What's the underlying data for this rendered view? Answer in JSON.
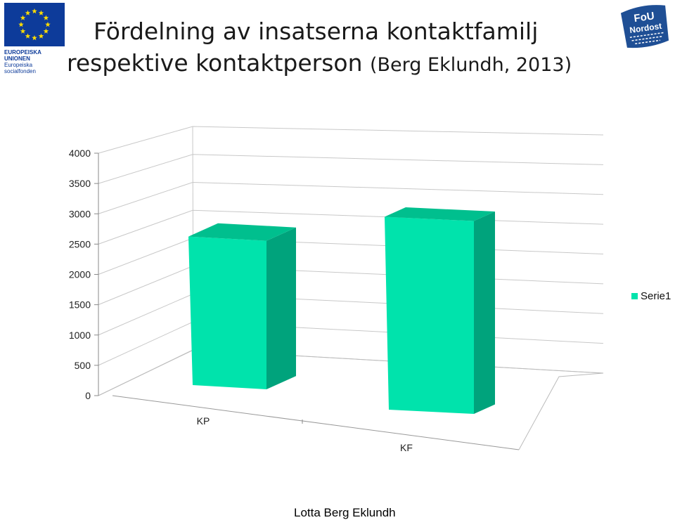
{
  "title": {
    "line1": "Fördelning av insatserna kontaktfamilj",
    "line2": "respektive kontaktperson",
    "line2_paren": "(Berg Eklundh, 2013)"
  },
  "logos": {
    "eu": {
      "line1": "EUROPEISKA UNIONEN",
      "line2": "Europeiska socialfonden",
      "flag_color": "#0d3b9a",
      "star_color": "#ffdd00"
    },
    "fou": {
      "line1": "FoU",
      "line2": "Nordost",
      "color": "#1f4f95"
    }
  },
  "chart_data": {
    "type": "bar",
    "categories": [
      "KP",
      "KF"
    ],
    "series": [
      {
        "name": "Serie1",
        "values": [
          2850,
          3700
        ],
        "color": "#00e3ac"
      }
    ],
    "ylim": [
      0,
      4000
    ],
    "yticks": [
      "0",
      "500",
      "1000",
      "1500",
      "2000",
      "2500",
      "3000",
      "3500",
      "4000"
    ],
    "grid": true,
    "legend": "right",
    "style": "3d"
  },
  "footer": "Lotta Berg Eklundh"
}
